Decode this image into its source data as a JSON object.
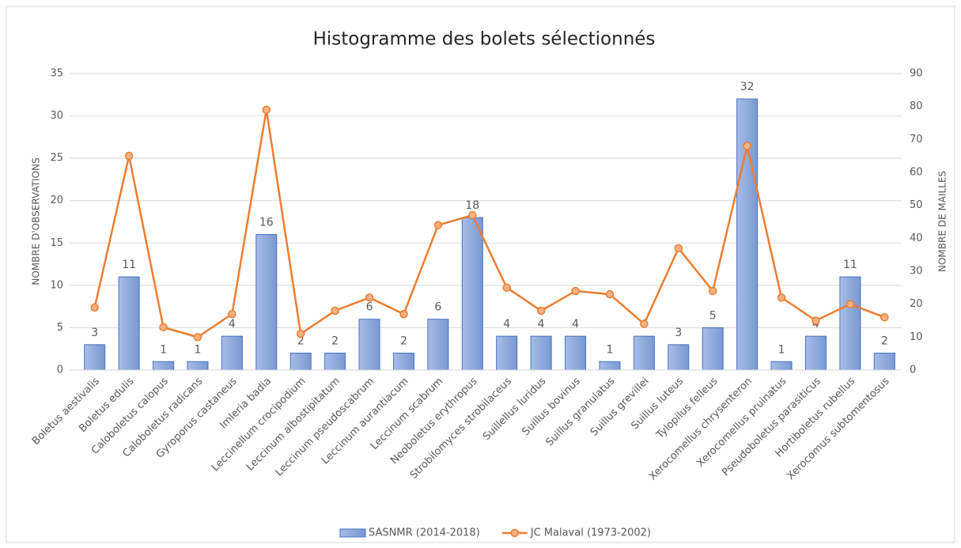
{
  "chart_data": {
    "type": "bar-line",
    "title": "Histogramme des bolets sélectionnés",
    "y_label": "NOMBRE D'OBSERVATIONS",
    "y2_label": "NOMBRE DE MAILLES",
    "categories": [
      "Boletus aestivalis",
      "Boletus edulis",
      "Caloboletus calopus",
      "Caloboletus radicans",
      "Gyroporus castaneus",
      "Imleria badia",
      "Leccinellum crocipodium",
      "Leccinum albostipitatum",
      "Leccinum pseudoscabrum",
      "Leccinum aurantiacum",
      "Leccinum scabrum",
      "Neoboletus erythropus",
      "Strobilomyces strobilaceus",
      "Suillellus luridus",
      "Suillus bovinus",
      "Suillus granulatus",
      "Suillus grevillei",
      "Suillus luteus",
      "Tylopilus felleus",
      "Xerocomellus chrysenteron",
      "Xerocomellus pruinatus",
      "Pseudoboletus parasiticus",
      "Hortiboletus rubellus",
      "Xerocomus subtomentosus"
    ],
    "series": [
      {
        "name": "SASNMR (2014-2018)",
        "type": "bar",
        "color": "#4472c4",
        "axis": "y",
        "values": [
          3,
          11,
          1,
          1,
          4,
          16,
          2,
          2,
          6,
          2,
          6,
          18,
          4,
          4,
          4,
          1,
          4,
          3,
          5,
          32,
          1,
          4,
          11,
          2
        ],
        "data_labels": true
      },
      {
        "name": "JC Malaval (1973-2002)",
        "type": "line",
        "color": "#ed7d31",
        "axis": "y2",
        "values": [
          19,
          65,
          13,
          10,
          17,
          79,
          11,
          18,
          22,
          17,
          44,
          47,
          25,
          18,
          24,
          23,
          14,
          37,
          24,
          68,
          22,
          15,
          20,
          16
        ]
      }
    ],
    "ylim": [
      0,
      35
    ],
    "yticks": [
      0,
      5,
      10,
      15,
      20,
      25,
      30,
      35
    ],
    "y2lim": [
      0,
      90
    ],
    "y2ticks": [
      0,
      10,
      20,
      30,
      40,
      50,
      60,
      70,
      80,
      90
    ],
    "grid": true,
    "legend": "bottom"
  }
}
